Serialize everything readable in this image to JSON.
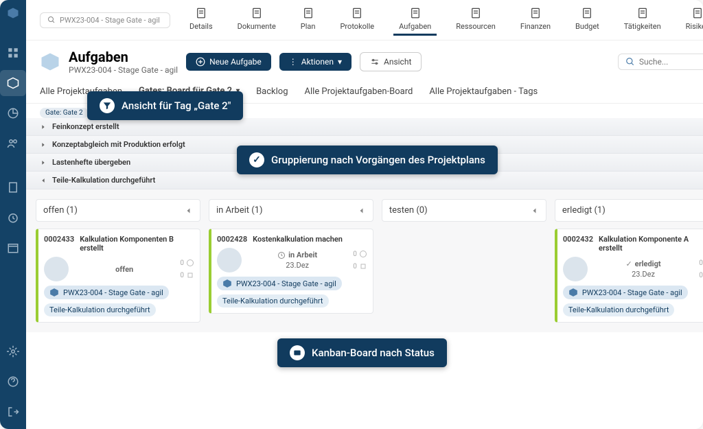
{
  "search_value": "PWX23-004 - Stage Gate - agil",
  "topnav": [
    {
      "label": "Details"
    },
    {
      "label": "Dokumente"
    },
    {
      "label": "Plan"
    },
    {
      "label": "Protokolle"
    },
    {
      "label": "Aufgaben",
      "active": true
    },
    {
      "label": "Ressourcen"
    },
    {
      "label": "Finanzen"
    },
    {
      "label": "Budget"
    },
    {
      "label": "Tätigkeiten"
    },
    {
      "label": "Risiken"
    }
  ],
  "header": {
    "title": "Aufgaben",
    "subtitle": "PWX23-004 - Stage Gate - agil"
  },
  "buttons": {
    "new_task": "Neue Aufgabe",
    "actions": "Aktionen",
    "view": "Ansicht"
  },
  "search_placeholder": "Suche...",
  "tabs": [
    "Alle Projektaufgaben",
    "Gates: Board für Gate 2",
    "Backlog",
    "Alle Projektaufgaben-Board",
    "Alle Projektaufgaben - Tags"
  ],
  "active_tab": 1,
  "tag_chip": "Gate: Gate 2",
  "groups": [
    {
      "label": "Feinkonzept erstellt",
      "expanded": false
    },
    {
      "label": "Konzeptabgleich mit Produktion erfolgt",
      "expanded": false
    },
    {
      "label": "Lastenhefte übergeben",
      "expanded": false
    },
    {
      "label": "Teile-Kalkulation durchgeführt",
      "expanded": true
    }
  ],
  "columns": [
    {
      "title": "offen",
      "count": 1,
      "cards": [
        {
          "id": "0002433",
          "title": "Kalkulation Komponenten B erstellt",
          "status": "offen",
          "date": "",
          "project": "PWX23-004 - Stage Gate - agil",
          "phase": "Teile-Kalkulation durchgeführt"
        }
      ]
    },
    {
      "title": "in Arbeit",
      "count": 1,
      "cards": [
        {
          "id": "0002428",
          "title": "Kostenkalkulation machen",
          "status": "in Arbeit",
          "date": "23.Dez",
          "project": "PWX23-004 - Stage Gate - agil",
          "phase": "Teile-Kalkulation durchgeführt"
        }
      ]
    },
    {
      "title": "testen",
      "count": 0,
      "cards": []
    },
    {
      "title": "erledigt",
      "count": 1,
      "cards": [
        {
          "id": "0002432",
          "title": "Kalkulation Komponente A erstellt",
          "status": "erledigt",
          "date": "23.Dez",
          "project": "PWX23-004 - Stage Gate - agil",
          "phase": "Teile-Kalkulation durchgeführt"
        }
      ]
    }
  ],
  "callouts": {
    "c1": "Ansicht für Tag „Gate 2\"",
    "c2": "Gruppierung nach Vorgängen des Projektplans",
    "c3": "Kanban-Board nach Status"
  },
  "colors": {
    "primary": "#113b5e",
    "card_border": "#9acd32"
  }
}
